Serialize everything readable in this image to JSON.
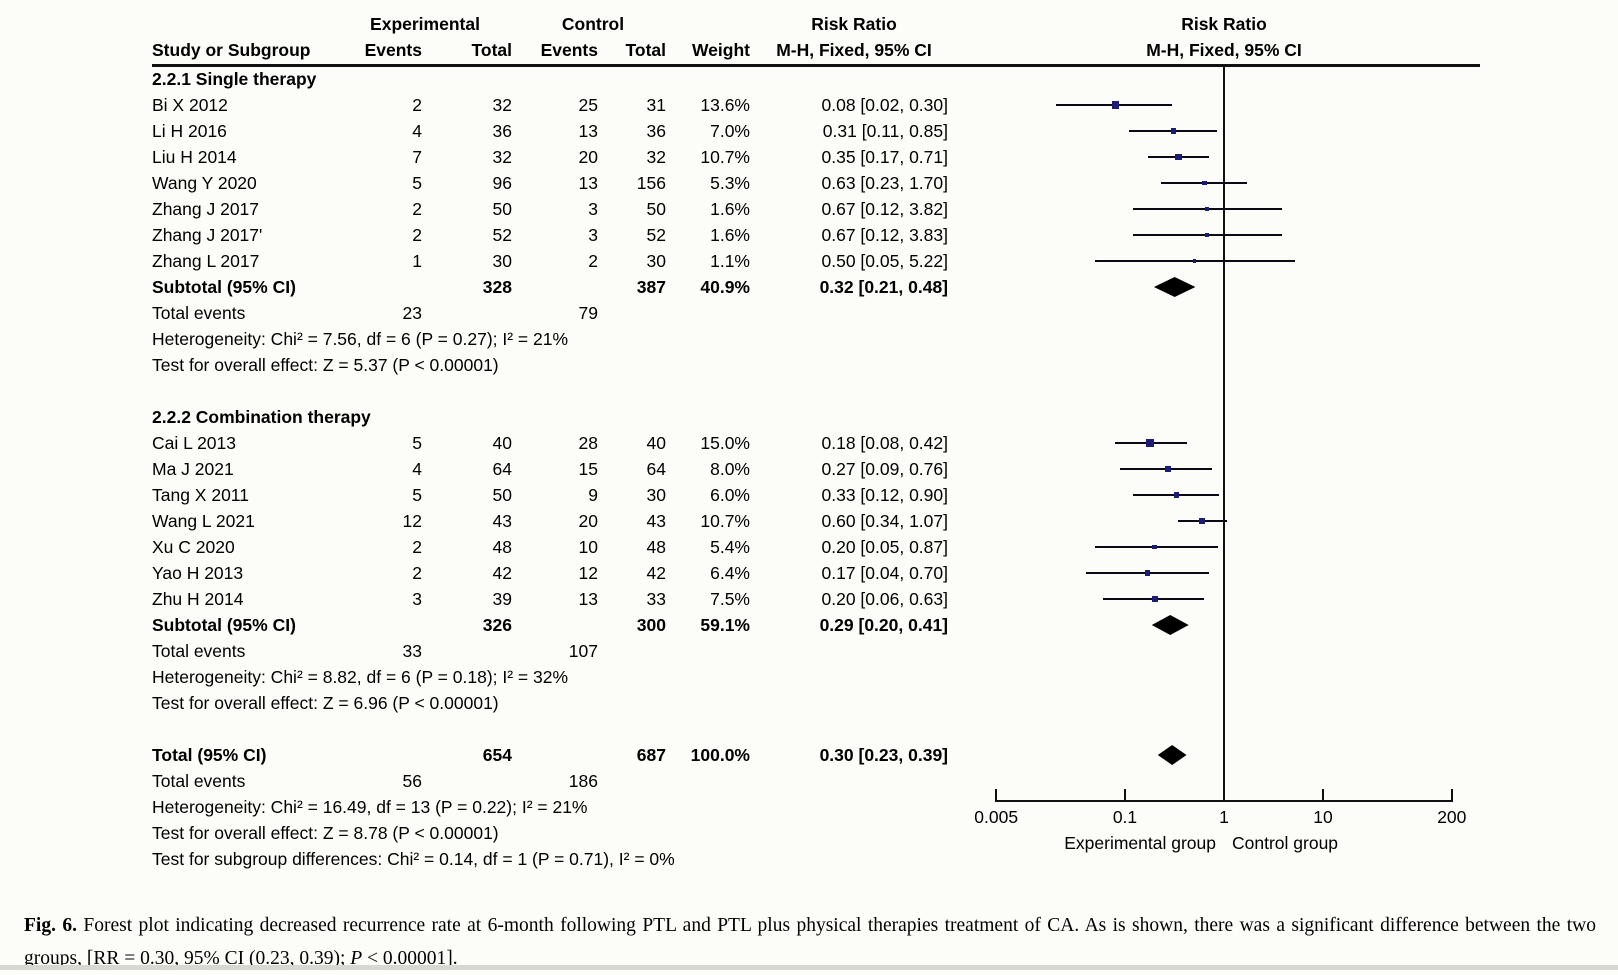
{
  "table": {
    "header_experimental": "Experimental",
    "header_control": "Control",
    "header_risk_ratio": "Risk Ratio",
    "header_study": "Study or Subgroup",
    "header_events": "Events",
    "header_total": "Total",
    "header_weight": "Weight",
    "header_mh": "M-H, Fixed, 95% CI",
    "plot_header_line1": "Risk Ratio",
    "plot_header_line2": "M-H, Fixed, 95% CI"
  },
  "chart_data": {
    "type": "forest",
    "effect_measure": "Risk Ratio, M-H, Fixed, 95% CI",
    "x_axis": {
      "scale": "log",
      "min": 0.005,
      "max": 200,
      "ticks": [
        0.005,
        0.1,
        1,
        10,
        200
      ],
      "tick_labels": [
        "0.005",
        "0.1",
        "1",
        "10",
        "200"
      ],
      "left_label": "Experimental group",
      "right_label": "Control group"
    },
    "sections": [
      {
        "title": "2.2.1 Single therapy",
        "studies": [
          {
            "name": "Bi X 2012",
            "exp_events": 2,
            "exp_total": 32,
            "ctrl_events": 25,
            "ctrl_total": 31,
            "weight": "13.6%",
            "weight_pct": 13.6,
            "rr": 0.08,
            "ci_low": 0.02,
            "ci_high": 0.3,
            "label": "0.08 [0.02, 0.30]"
          },
          {
            "name": "Li H 2016",
            "exp_events": 4,
            "exp_total": 36,
            "ctrl_events": 13,
            "ctrl_total": 36,
            "weight": "7.0%",
            "weight_pct": 7.0,
            "rr": 0.31,
            "ci_low": 0.11,
            "ci_high": 0.85,
            "label": "0.31 [0.11, 0.85]"
          },
          {
            "name": "Liu H 2014",
            "exp_events": 7,
            "exp_total": 32,
            "ctrl_events": 20,
            "ctrl_total": 32,
            "weight": "10.7%",
            "weight_pct": 10.7,
            "rr": 0.35,
            "ci_low": 0.17,
            "ci_high": 0.71,
            "label": "0.35 [0.17, 0.71]"
          },
          {
            "name": "Wang Y 2020",
            "exp_events": 5,
            "exp_total": 96,
            "ctrl_events": 13,
            "ctrl_total": 156,
            "weight": "5.3%",
            "weight_pct": 5.3,
            "rr": 0.63,
            "ci_low": 0.23,
            "ci_high": 1.7,
            "label": "0.63 [0.23, 1.70]"
          },
          {
            "name": "Zhang J 2017",
            "exp_events": 2,
            "exp_total": 50,
            "ctrl_events": 3,
            "ctrl_total": 50,
            "weight": "1.6%",
            "weight_pct": 1.6,
            "rr": 0.67,
            "ci_low": 0.12,
            "ci_high": 3.82,
            "label": "0.67 [0.12, 3.82]"
          },
          {
            "name": "Zhang J 2017'",
            "exp_events": 2,
            "exp_total": 52,
            "ctrl_events": 3,
            "ctrl_total": 52,
            "weight": "1.6%",
            "weight_pct": 1.6,
            "rr": 0.67,
            "ci_low": 0.12,
            "ci_high": 3.83,
            "label": "0.67 [0.12, 3.83]"
          },
          {
            "name": "Zhang L 2017",
            "exp_events": 1,
            "exp_total": 30,
            "ctrl_events": 2,
            "ctrl_total": 30,
            "weight": "1.1%",
            "weight_pct": 1.1,
            "rr": 0.5,
            "ci_low": 0.05,
            "ci_high": 5.22,
            "label": "0.50 [0.05, 5.22]"
          }
        ],
        "subtotal": {
          "name": "Subtotal (95% CI)",
          "exp_total": 328,
          "ctrl_total": 387,
          "weight": "40.9%",
          "rr": 0.32,
          "ci_low": 0.21,
          "ci_high": 0.48,
          "label": "0.32 [0.21, 0.48]"
        },
        "total_events": {
          "label": "Total events",
          "exp": 23,
          "ctrl": 79
        },
        "heterogeneity": "Heterogeneity: Chi² = 7.56, df = 6 (P = 0.27); I² = 21%",
        "overall_effect": "Test for overall effect: Z = 5.37 (P < 0.00001)"
      },
      {
        "title": "2.2.2 Combination therapy",
        "studies": [
          {
            "name": "Cai L 2013",
            "exp_events": 5,
            "exp_total": 40,
            "ctrl_events": 28,
            "ctrl_total": 40,
            "weight": "15.0%",
            "weight_pct": 15.0,
            "rr": 0.18,
            "ci_low": 0.08,
            "ci_high": 0.42,
            "label": "0.18 [0.08, 0.42]"
          },
          {
            "name": "Ma J 2021",
            "exp_events": 4,
            "exp_total": 64,
            "ctrl_events": 15,
            "ctrl_total": 64,
            "weight": "8.0%",
            "weight_pct": 8.0,
            "rr": 0.27,
            "ci_low": 0.09,
            "ci_high": 0.76,
            "label": "0.27 [0.09, 0.76]"
          },
          {
            "name": "Tang X 2011",
            "exp_events": 5,
            "exp_total": 50,
            "ctrl_events": 9,
            "ctrl_total": 30,
            "weight": "6.0%",
            "weight_pct": 6.0,
            "rr": 0.33,
            "ci_low": 0.12,
            "ci_high": 0.9,
            "label": "0.33 [0.12, 0.90]"
          },
          {
            "name": "Wang L 2021",
            "exp_events": 12,
            "exp_total": 43,
            "ctrl_events": 20,
            "ctrl_total": 43,
            "weight": "10.7%",
            "weight_pct": 10.7,
            "rr": 0.6,
            "ci_low": 0.34,
            "ci_high": 1.07,
            "label": "0.60 [0.34, 1.07]"
          },
          {
            "name": "Xu C 2020",
            "exp_events": 2,
            "exp_total": 48,
            "ctrl_events": 10,
            "ctrl_total": 48,
            "weight": "5.4%",
            "weight_pct": 5.4,
            "rr": 0.2,
            "ci_low": 0.05,
            "ci_high": 0.87,
            "label": "0.20 [0.05, 0.87]"
          },
          {
            "name": "Yao H 2013",
            "exp_events": 2,
            "exp_total": 42,
            "ctrl_events": 12,
            "ctrl_total": 42,
            "weight": "6.4%",
            "weight_pct": 6.4,
            "rr": 0.17,
            "ci_low": 0.04,
            "ci_high": 0.7,
            "label": "0.17 [0.04, 0.70]"
          },
          {
            "name": "Zhu H 2014",
            "exp_events": 3,
            "exp_total": 39,
            "ctrl_events": 13,
            "ctrl_total": 33,
            "weight": "7.5%",
            "weight_pct": 7.5,
            "rr": 0.2,
            "ci_low": 0.06,
            "ci_high": 0.63,
            "label": "0.20 [0.06, 0.63]"
          }
        ],
        "subtotal": {
          "name": "Subtotal (95% CI)",
          "exp_total": 326,
          "ctrl_total": 300,
          "weight": "59.1%",
          "rr": 0.29,
          "ci_low": 0.2,
          "ci_high": 0.41,
          "label": "0.29 [0.20, 0.41]"
        },
        "total_events": {
          "label": "Total events",
          "exp": 33,
          "ctrl": 107
        },
        "heterogeneity": "Heterogeneity: Chi² = 8.82, df = 6 (P = 0.18); I² = 32%",
        "overall_effect": "Test for overall effect: Z = 6.96 (P < 0.00001)"
      }
    ],
    "total": {
      "name": "Total (95% CI)",
      "exp_total": 654,
      "ctrl_total": 687,
      "weight": "100.0%",
      "rr": 0.3,
      "ci_low": 0.23,
      "ci_high": 0.39,
      "label": "0.30 [0.23, 0.39]",
      "total_events": {
        "label": "Total events",
        "exp": 56,
        "ctrl": 186
      },
      "heterogeneity": "Heterogeneity: Chi² = 16.49, df = 13 (P = 0.22); I² = 21%",
      "overall_effect": "Test for overall effect: Z = 8.78 (P < 0.00001)",
      "subgroup_diff": "Test for subgroup differences: Chi² = 0.14, df = 1 (P = 0.71), I² = 0%"
    }
  },
  "caption": {
    "segments": [
      {
        "text": "Fig. 6. ",
        "bold": true
      },
      {
        "text": "Forest plot indicating decreased recurrence rate at 6-month following PTL and PTL plus physical therapies treatment of CA. As is shown, there was a significant difference between the two groups, [RR = 0.30, 95% CI (0.23, 0.39); "
      },
      {
        "text": "P",
        "italic": true
      },
      {
        "text": " < 0.00001]."
      }
    ]
  }
}
